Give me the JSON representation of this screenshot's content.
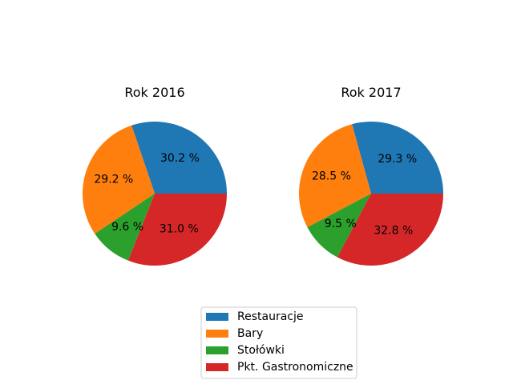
{
  "chart_data": [
    {
      "type": "pie",
      "title": "Rok 2016",
      "categories": [
        "Restauracje",
        "Bary",
        "Stołówki",
        "Pkt. Gastronomiczne"
      ],
      "values": [
        30.2,
        29.2,
        9.6,
        31.0
      ],
      "labels": [
        "30.2 %",
        "29.2 %",
        "9.6 %",
        "31.0 %"
      ]
    },
    {
      "type": "pie",
      "title": "Rok 2017",
      "categories": [
        "Restauracje",
        "Bary",
        "Stołówki",
        "Pkt. Gastronomiczne"
      ],
      "values": [
        29.3,
        28.5,
        9.5,
        32.8
      ],
      "labels": [
        "29.3 %",
        "28.5 %",
        "9.5 %",
        "32.8 %"
      ]
    }
  ],
  "legend": {
    "placement": "bottom-center",
    "items": [
      {
        "label": "Restauracje",
        "color": "#1f77b4"
      },
      {
        "label": "Bary",
        "color": "#ff7f0e"
      },
      {
        "label": "Stołówki",
        "color": "#2ca02c"
      },
      {
        "label": "Pkt. Gastronomiczne",
        "color": "#d62728"
      }
    ]
  }
}
